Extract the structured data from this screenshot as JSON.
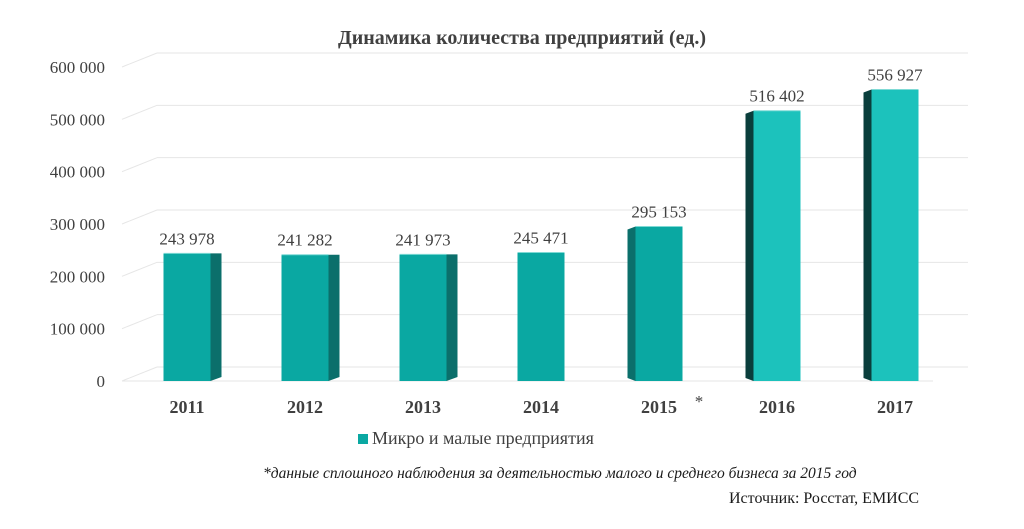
{
  "chart_data": {
    "type": "bar",
    "title": "Динамика количества предприятий (ед.)",
    "categories": [
      "2011",
      "2012",
      "2013",
      "2014",
      "2015",
      "2016",
      "2017"
    ],
    "category_marker": {
      "category": "2015",
      "text": "*"
    },
    "series": [
      {
        "name": "Микро и малые предприятия",
        "values": [
          243978,
          241282,
          241973,
          245471,
          295153,
          516402,
          556927
        ],
        "data_labels": [
          "243 978",
          "241 282",
          "241 973",
          "245 471",
          "295 153",
          "516 402",
          "556 927"
        ]
      }
    ],
    "yticks": [
      0,
      100000,
      200000,
      300000,
      400000,
      500000,
      600000
    ],
    "ytick_labels": [
      "0",
      "100 000",
      "200 000",
      "300 000",
      "400 000",
      "500 000",
      "600 000"
    ],
    "ylim": [
      0,
      600000
    ],
    "grid": true,
    "legend_position": "bottom-left",
    "colors": {
      "face": "#0aa8a2",
      "face_light": "#1cc2bc",
      "side": "#0b6f6b",
      "side_dark": "#0a3e3c",
      "grid": "#e6e6e6"
    }
  },
  "footnote": "*данные сплошного наблюдения за деятельностью малого и среднего бизнеса за 2015 год",
  "source": "Источник: Росстат, ЕМИСС"
}
